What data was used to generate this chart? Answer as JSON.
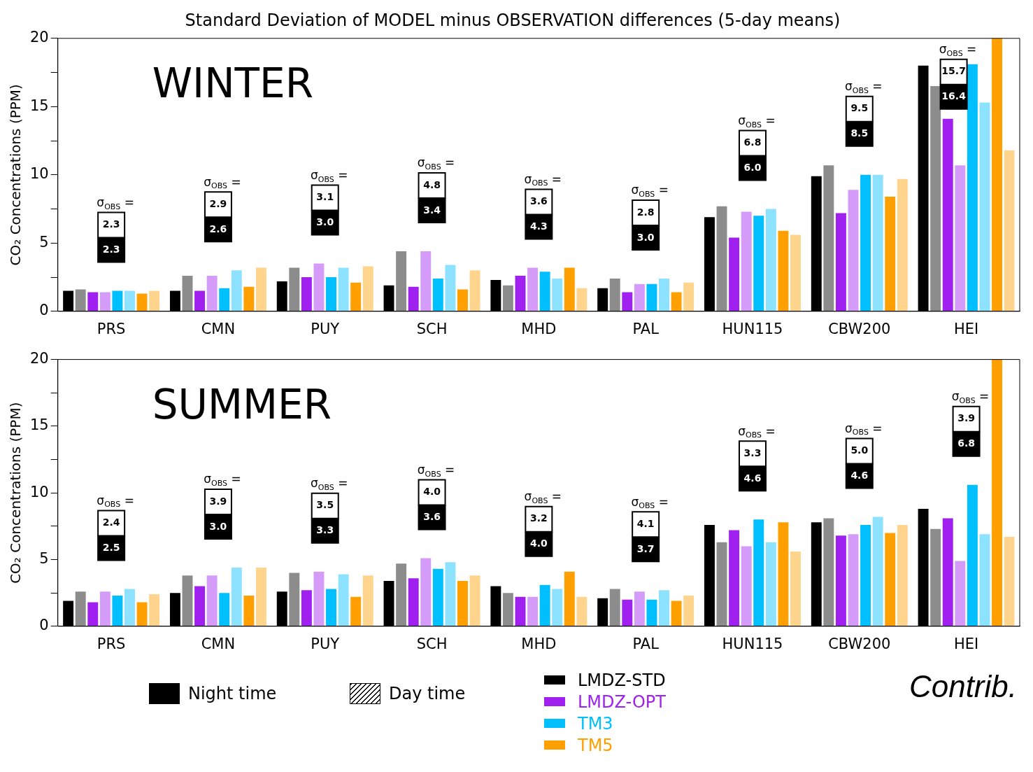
{
  "chart_data": [
    {
      "type": "bar",
      "title": "Standard Deviation of MODEL minus OBSERVATION differences (5-day means)",
      "subtitle": "WINTER",
      "ylabel": "CO₂ Concentrations (PPM)",
      "categories": [
        "PRS",
        "CMN",
        "PUY",
        "SCH",
        "MHD",
        "PAL",
        "HUN115",
        "CBW200",
        "HEI"
      ],
      "series": [
        {
          "color": "#000000",
          "values": [
            1.5,
            1.5,
            2.2,
            1.9,
            2.3,
            1.7,
            6.9,
            9.9,
            18.0
          ]
        },
        {
          "color": "#8c8c8c",
          "values": [
            1.6,
            2.6,
            3.2,
            4.4,
            1.9,
            2.4,
            7.7,
            10.7,
            16.5
          ]
        },
        {
          "color": "#a020f0",
          "values": [
            1.4,
            1.5,
            2.5,
            1.8,
            2.6,
            1.4,
            5.4,
            7.2,
            14.1
          ]
        },
        {
          "color": "#d49bf8",
          "values": [
            1.4,
            2.6,
            3.5,
            4.4,
            3.2,
            2.0,
            7.3,
            8.9,
            10.7
          ]
        },
        {
          "color": "#00bfff",
          "values": [
            1.5,
            1.7,
            2.5,
            2.4,
            2.9,
            2.0,
            7.0,
            10.0,
            18.1
          ]
        },
        {
          "color": "#8ce2ff",
          "values": [
            1.5,
            3.0,
            3.2,
            3.4,
            2.4,
            2.4,
            7.5,
            10.0,
            15.3
          ]
        },
        {
          "color": "#ffa000",
          "values": [
            1.3,
            1.8,
            2.1,
            1.6,
            3.2,
            1.4,
            5.9,
            8.4,
            20
          ]
        },
        {
          "color": "#ffd48c",
          "values": [
            1.5,
            3.2,
            3.3,
            3.0,
            1.7,
            2.1,
            5.6,
            9.7,
            11.8
          ]
        }
      ],
      "ylim": [
        0,
        20
      ],
      "yticks": [
        0,
        {
          "value": 2.5,
          "label": null
        },
        5,
        {
          "value": 7.5,
          "label": null
        },
        10,
        {
          "value": 12.5,
          "label": null
        },
        15,
        {
          "value": 17.5,
          "label": null
        },
        20
      ],
      "grid": false,
      "legend": false,
      "annotations": [
        "σ$_{OBS}$ =",
        "2.3",
        "2.3",
        "σ$_{OBS}$ =",
        "2.9",
        "2.6",
        "σ$_{OBS}$ =",
        "3.1",
        "3.0",
        "σ$_{OBS}$ =",
        "4.8",
        "3.4",
        "σ$_{OBS}$ =",
        "3.6",
        "4.3",
        "σ$_{OBS}$ =",
        "2.8",
        "3.0",
        "σ$_{OBS}$ =",
        "6.8",
        "6.0",
        "σ$_{OBS}$ =",
        "9.5",
        "8.5",
        "σ$_{OBS}$ =",
        "15.7",
        "16.4"
      ]
    },
    {
      "type": "bar",
      "subtitle": "SUMMER",
      "ylabel": "CO₂ Concentrations (PPM)",
      "categories": [
        "PRS",
        "CMN",
        "PUY",
        "SCH",
        "MHD",
        "PAL",
        "HUN115",
        "CBW200",
        "HEI"
      ],
      "series": [
        {
          "name": "LMDZ-STD",
          "color": "#000000",
          "values": [
            1.9,
            2.5,
            2.6,
            3.4,
            3.0,
            2.1,
            7.6,
            7.8,
            8.8
          ]
        },
        {
          "color": "#8c8c8c",
          "values": [
            2.6,
            3.8,
            4.0,
            4.7,
            2.5,
            2.8,
            6.3,
            8.1,
            7.3
          ]
        },
        {
          "name": "LMDZ-OPT",
          "color": "#a020f0",
          "values": [
            1.8,
            3.0,
            2.7,
            3.6,
            2.2,
            2.0,
            7.2,
            6.8,
            8.1
          ]
        },
        {
          "color": "#d49bf8",
          "values": [
            2.6,
            3.8,
            4.1,
            5.1,
            2.2,
            2.6,
            6.0,
            6.9,
            4.9
          ]
        },
        {
          "name": "TM3",
          "color": "#00bfff",
          "values": [
            2.3,
            2.5,
            2.8,
            4.3,
            3.1,
            2.0,
            8.0,
            7.6,
            10.6
          ]
        },
        {
          "color": "#8ce2ff",
          "values": [
            2.8,
            4.4,
            3.9,
            4.8,
            2.8,
            2.7,
            6.3,
            8.2,
            6.9
          ]
        },
        {
          "name": "TM5",
          "color": "#ffa000",
          "values": [
            1.8,
            2.3,
            2.2,
            3.4,
            4.1,
            1.9,
            7.8,
            7.0,
            20
          ]
        },
        {
          "color": "#ffd48c",
          "values": [
            2.4,
            4.4,
            3.8,
            3.8,
            2.2,
            2.3,
            5.6,
            7.6,
            6.7
          ]
        }
      ],
      "ylim": [
        0,
        20
      ],
      "yticks": [
        0,
        {
          "value": 2.5,
          "label": null
        },
        5,
        {
          "value": 7.5,
          "label": null
        },
        10,
        {
          "value": 12.5,
          "label": null
        },
        15,
        {
          "value": 17.5,
          "label": null
        },
        20
      ],
      "grid": false,
      "legend": "bottom",
      "annotations": [
        "σ$_{OBS}$ =",
        "2.4",
        "2.5",
        "σ$_{OBS}$ =",
        "3.9",
        "3.0",
        "σ$_{OBS}$ =",
        "3.5",
        "3.3",
        "σ$_{OBS}$ =",
        "4.0",
        "3.6",
        "σ$_{OBS}$ =",
        "3.2",
        "4.0",
        "σ$_{OBS}$ =",
        "4.1",
        "3.7",
        "σ$_{OBS}$ =",
        "3.3",
        "4.6",
        "σ$_{OBS}$ =",
        "5.0",
        "4.6",
        "σ$_{OBS}$ =",
        "3.9",
        "6.8",
        "Night time",
        "Day time",
        "Contrib."
      ]
    }
  ]
}
